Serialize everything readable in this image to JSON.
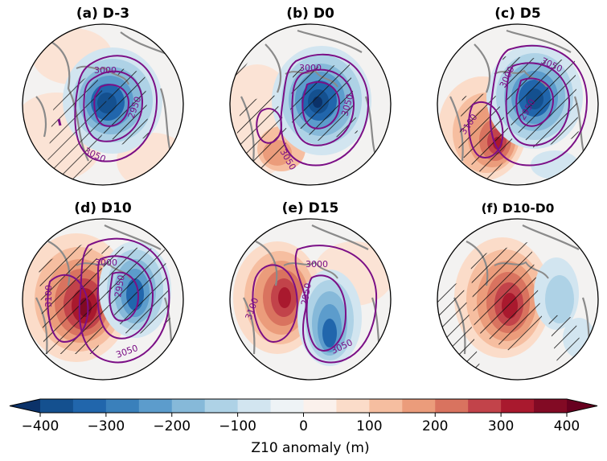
{
  "chart_data": {
    "type": "heatmap",
    "colorbar": {
      "label": "Z10 anomaly (m)",
      "ticks": [
        -400,
        -300,
        -200,
        -100,
        0,
        100,
        200,
        300,
        400
      ],
      "tick_labels": [
        "−400",
        "−300",
        "−200",
        "−100",
        "0",
        "100",
        "200",
        "300",
        "400"
      ],
      "levels": [
        -450,
        -400,
        -350,
        -300,
        -250,
        -200,
        -150,
        -100,
        -50,
        0,
        50,
        100,
        150,
        200,
        250,
        300,
        350,
        400,
        450
      ],
      "colors": [
        "#0b3269",
        "#14508f",
        "#2166ac",
        "#3a80bb",
        "#5c9ccc",
        "#86b9d9",
        "#aed2e6",
        "#d2e5f0",
        "#eef3f6",
        "#fbf1ec",
        "#fbdcc9",
        "#f6bea0",
        "#eb9c7b",
        "#d9735f",
        "#c2434a",
        "#a9192e",
        "#820a24",
        "#67001f"
      ],
      "extend": "both"
    },
    "panels": [
      {
        "id": "a",
        "title": "(a) D-3",
        "contour_labels": [
          "3000",
          "2950",
          "3050"
        ],
        "anomaly_min": -400,
        "anomaly_max": 100,
        "hatched": true
      },
      {
        "id": "b",
        "title": "(b) D0",
        "contour_labels": [
          "3000",
          "3050",
          "3050"
        ],
        "anomaly_min": -450,
        "anomaly_max": 200,
        "hatched": true
      },
      {
        "id": "c",
        "title": "(c) D5",
        "contour_labels": [
          "3050",
          "3000",
          "3100",
          "2950"
        ],
        "anomaly_min": -400,
        "anomaly_max": 400,
        "hatched": true
      },
      {
        "id": "d",
        "title": "(d) D10",
        "contour_labels": [
          "3000",
          "3050",
          "3100",
          "2950"
        ],
        "anomaly_min": -350,
        "anomaly_max": 450,
        "hatched": true
      },
      {
        "id": "e",
        "title": "(e) D15",
        "contour_labels": [
          "3000",
          "2950",
          "3100",
          "3050"
        ],
        "anomaly_min": -350,
        "anomaly_max": 350,
        "hatched": false
      },
      {
        "id": "f",
        "title": "(f) D10-D0",
        "contour_labels": [],
        "anomaly_min": -100,
        "anomaly_max": 400,
        "hatched": true
      }
    ]
  }
}
